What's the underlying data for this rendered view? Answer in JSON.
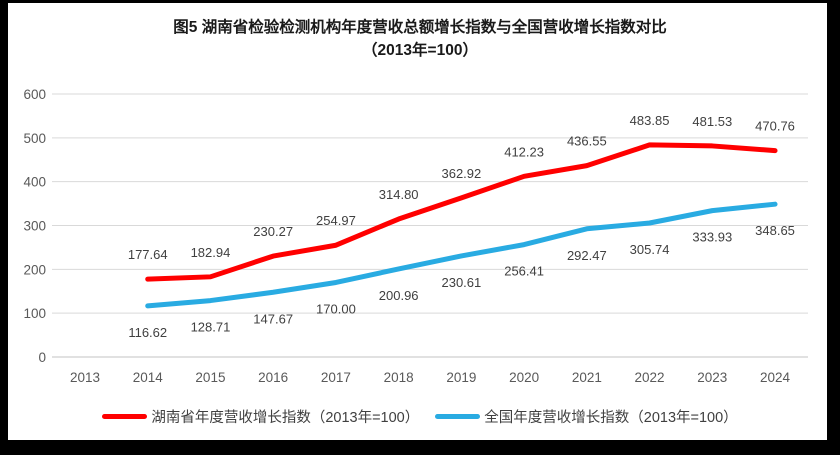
{
  "title": {
    "line1": "图5 湖南省检验检测机构年度营收总额增长指数与全国营收增长指数对比",
    "line2": "（2013年=100）"
  },
  "chart_data": {
    "type": "line",
    "categories": [
      "2013",
      "2014",
      "2015",
      "2016",
      "2017",
      "2018",
      "2019",
      "2020",
      "2021",
      "2022",
      "2023",
      "2024"
    ],
    "series": [
      {
        "name": "湖南省年度营收增长指数（2013年=100）",
        "color": "#FF0000",
        "values": [
          null,
          177.64,
          182.94,
          230.27,
          254.97,
          314.8,
          362.92,
          412.23,
          436.55,
          483.85,
          481.53,
          470.76
        ]
      },
      {
        "name": "全国年度营收增长指数（2013年=100）",
        "color": "#29ABE2",
        "values": [
          null,
          116.62,
          128.71,
          147.67,
          170.0,
          200.96,
          230.61,
          256.41,
          292.47,
          305.74,
          333.93,
          348.65
        ]
      }
    ],
    "ylim": [
      0,
      600
    ],
    "yticks": [
      0,
      100,
      200,
      300,
      400,
      500,
      600
    ],
    "grid": true,
    "legend_position": "bottom",
    "data_labels": true,
    "axis_label_color": "#595959",
    "data_label_color": "#404040",
    "gridline_color": "#d9d9d9",
    "axis_line_color": "#c3c3c3"
  }
}
